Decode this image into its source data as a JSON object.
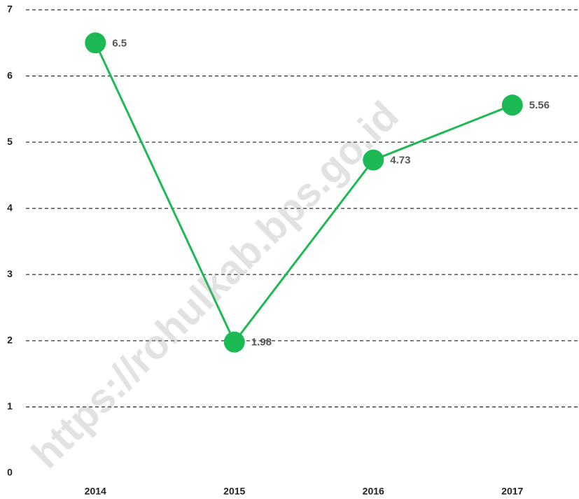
{
  "chart_data": {
    "type": "line",
    "categories": [
      "2014",
      "2015",
      "2016",
      "2017"
    ],
    "series": [
      {
        "color": "#1db954",
        "values": [
          6.5,
          1.98,
          4.73,
          5.56
        ]
      }
    ],
    "ylim": [
      0,
      7
    ],
    "yticks": [
      0,
      1,
      2,
      3,
      4,
      5,
      6,
      7
    ],
    "grid": true,
    "watermark": "https://rohulkab.bps.go.id"
  }
}
